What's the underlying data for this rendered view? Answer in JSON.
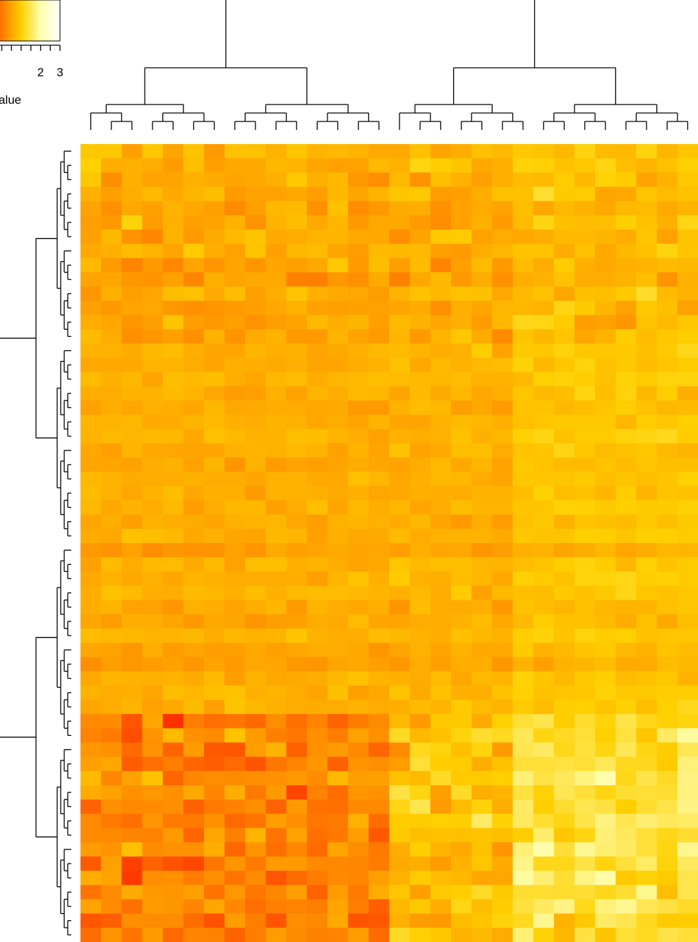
{
  "chart_data": {
    "type": "heatmap",
    "title": "",
    "xlabel": "",
    "ylabel": "",
    "n_rows": 56,
    "n_cols": 30,
    "color_scale": {
      "label": "alue",
      "tick_labels": [
        "2",
        "3"
      ],
      "ticks": [
        2,
        3
      ],
      "range": [
        -1,
        3
      ],
      "colors": [
        "#ff0000",
        "#ff7a00",
        "#ffd000",
        "#ffffb0",
        "#ffffff"
      ]
    },
    "column_groups": [
      3,
      3,
      2,
      3,
      3,
      3,
      3,
      3,
      3,
      4
    ],
    "row_blocks": [
      {
        "rows": 14,
        "mean": 0.55,
        "spread": 0.55
      },
      {
        "rows": 26,
        "mean": 0.75,
        "spread": 0.3
      },
      {
        "rows": 16,
        "mean": 0.6,
        "spread": 0.8
      }
    ],
    "col_clusters": [
      {
        "cols": 15,
        "mean": 0.45
      },
      {
        "cols": 6,
        "mean": 0.55
      },
      {
        "cols": 9,
        "mean": 1.0
      }
    ],
    "row_tree": {
      "top_split": 28,
      "second_split": 14
    },
    "col_tree": {
      "top_split": 15
    }
  }
}
